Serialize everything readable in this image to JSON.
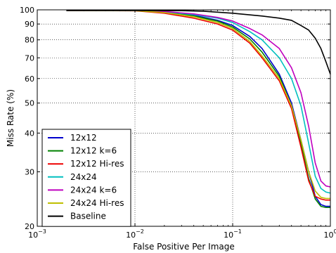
{
  "chart_data": {
    "type": "line",
    "xlabel": "False Positive Per Image",
    "ylabel": "Miss Rate (%)",
    "xscale": "log",
    "yscale": "log",
    "xlim": [
      0.001,
      1
    ],
    "ylim": [
      20,
      100
    ],
    "x_ticks": [
      {
        "value": 0.001,
        "base": "10",
        "exp": "−3"
      },
      {
        "value": 0.01,
        "base": "10",
        "exp": "−2"
      },
      {
        "value": 0.1,
        "base": "10",
        "exp": "−1"
      },
      {
        "value": 1,
        "base": "10",
        "exp": "0"
      }
    ],
    "y_ticks": [
      {
        "value": 20,
        "label": "20"
      },
      {
        "value": 30,
        "label": "30"
      },
      {
        "value": 40,
        "label": "40"
      },
      {
        "value": 50,
        "label": "50"
      },
      {
        "value": 60,
        "label": "60"
      },
      {
        "value": 70,
        "label": "70"
      },
      {
        "value": 80,
        "label": "80"
      },
      {
        "value": 90,
        "label": "90"
      },
      {
        "value": 100,
        "label": "100"
      }
    ],
    "grid": true,
    "legend_position": "lower-left",
    "series": [
      {
        "name": "12x12",
        "color": "#0000cc",
        "x": [
          0.002,
          0.01,
          0.02,
          0.04,
          0.07,
          0.1,
          0.15,
          0.2,
          0.3,
          0.4,
          0.5,
          0.6,
          0.7,
          0.8,
          0.9,
          1.0
        ],
        "y": [
          99.5,
          99.5,
          98.5,
          96,
          92.5,
          89,
          82,
          75,
          62,
          50,
          38,
          30,
          25,
          23.5,
          23.2,
          23.2
        ]
      },
      {
        "name": "12x12 k=6",
        "color": "#008000",
        "x": [
          0.002,
          0.01,
          0.02,
          0.04,
          0.07,
          0.1,
          0.15,
          0.2,
          0.3,
          0.4,
          0.5,
          0.6,
          0.7,
          0.8,
          0.9,
          1.0
        ],
        "y": [
          99.5,
          99.5,
          98.2,
          95.5,
          92,
          88,
          80.5,
          73,
          61,
          49,
          37,
          28.5,
          24.5,
          23.2,
          23,
          23
        ]
      },
      {
        "name": "12x12 Hi-res",
        "color": "#ee0000",
        "x": [
          0.002,
          0.01,
          0.02,
          0.04,
          0.07,
          0.1,
          0.15,
          0.2,
          0.3,
          0.4,
          0.5,
          0.6,
          0.7,
          0.8,
          0.9,
          1.0
        ],
        "y": [
          99.5,
          99.3,
          97.5,
          94,
          90,
          86,
          78,
          70,
          59,
          48,
          36,
          28,
          25,
          24.5,
          24.3,
          24.3
        ]
      },
      {
        "name": "24x24",
        "color": "#00bfbf",
        "x": [
          0.002,
          0.01,
          0.02,
          0.04,
          0.07,
          0.1,
          0.15,
          0.2,
          0.3,
          0.4,
          0.5,
          0.6,
          0.7,
          0.8,
          0.9,
          1.0
        ],
        "y": [
          99.5,
          99.5,
          98.5,
          96.5,
          94,
          91,
          85,
          80,
          70,
          60,
          49,
          37,
          29,
          26.5,
          25.8,
          25.6
        ]
      },
      {
        "name": "24x24 k=6",
        "color": "#bf00bf",
        "x": [
          0.002,
          0.01,
          0.02,
          0.04,
          0.07,
          0.1,
          0.15,
          0.2,
          0.3,
          0.4,
          0.5,
          0.6,
          0.7,
          0.8,
          0.9,
          1.0
        ],
        "y": [
          99.5,
          99.5,
          98.8,
          97,
          94.5,
          92,
          87,
          83,
          75,
          65,
          54,
          42,
          32,
          28,
          27,
          26.8
        ]
      },
      {
        "name": "24x24 Hi-res",
        "color": "#bfbf00",
        "x": [
          0.002,
          0.01,
          0.02,
          0.04,
          0.07,
          0.1,
          0.15,
          0.2,
          0.3,
          0.4,
          0.5,
          0.6,
          0.7,
          0.8,
          0.9,
          1.0
        ],
        "y": [
          99.5,
          99.4,
          98,
          95,
          91,
          87,
          79,
          71,
          60,
          49,
          38,
          30,
          26,
          24.8,
          24.6,
          24.6
        ]
      },
      {
        "name": "Baseline",
        "color": "#000000",
        "x": [
          0.002,
          0.01,
          0.03,
          0.05,
          0.1,
          0.2,
          0.3,
          0.4,
          0.5,
          0.6,
          0.7,
          0.8,
          0.9,
          1.0
        ],
        "y": [
          99.5,
          99.5,
          99.4,
          99,
          97.5,
          95.5,
          94,
          92.5,
          89,
          86,
          81,
          75,
          68,
          62
        ]
      }
    ]
  }
}
